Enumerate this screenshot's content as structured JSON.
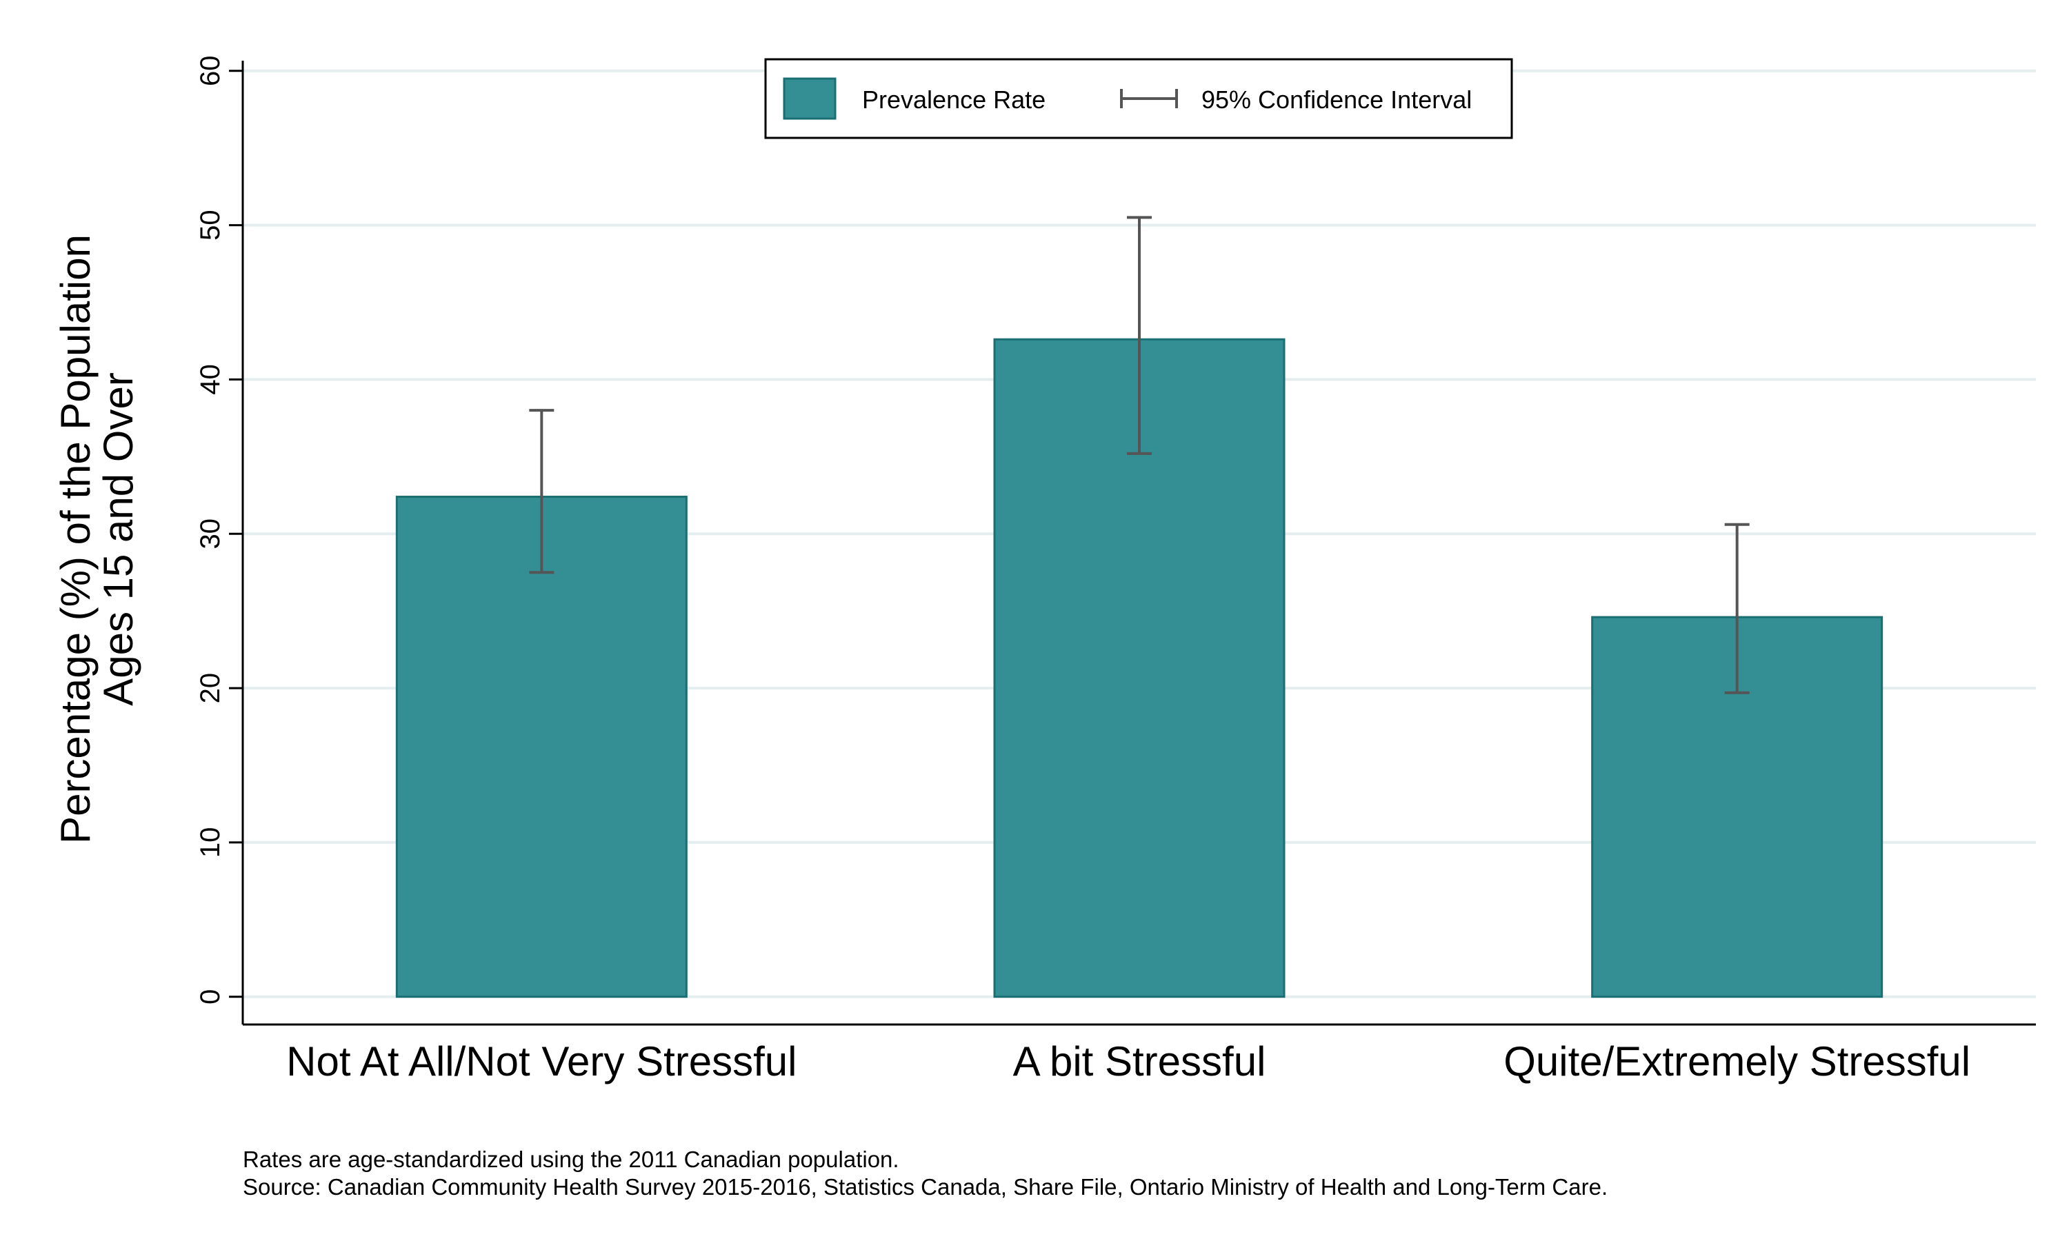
{
  "chart_data": {
    "type": "bar",
    "title": "",
    "ylabel_lines": [
      "Percentage (%) of the Population",
      "Ages 15 and Over"
    ],
    "xlabel": "",
    "categories": [
      "Not At All/Not Very Stressful",
      "A bit Stressful",
      "Quite/Extremely Stressful"
    ],
    "series": [
      {
        "name": "Prevalence Rate",
        "values": [
          32.4,
          42.6,
          24.6
        ],
        "ci_low": [
          27.5,
          35.2,
          19.7
        ],
        "ci_high": [
          38.0,
          50.5,
          30.6
        ]
      }
    ],
    "yticks": [
      0,
      10,
      20,
      30,
      40,
      50,
      60
    ],
    "ylim": [
      -1.8,
      62
    ],
    "grid": true,
    "legend": {
      "placement": "top-center",
      "items": [
        {
          "label": "Prevalence Rate",
          "kind": "bar"
        },
        {
          "label": "95% Confidence Interval",
          "kind": "errorbar"
        }
      ]
    }
  },
  "colors": {
    "bar_fill": "#348f95",
    "bar_edge": "#1a6f73",
    "error_bar": "#555555",
    "grid": "#e4eeee",
    "axis": "#000000"
  },
  "notes": {
    "line1": "Rates are age-standardized using the 2011 Canadian population.",
    "line2": "Source: Canadian Community Health Survey 2015-2016, Statistics Canada, Share File, Ontario Ministry of Health and Long-Term Care."
  }
}
